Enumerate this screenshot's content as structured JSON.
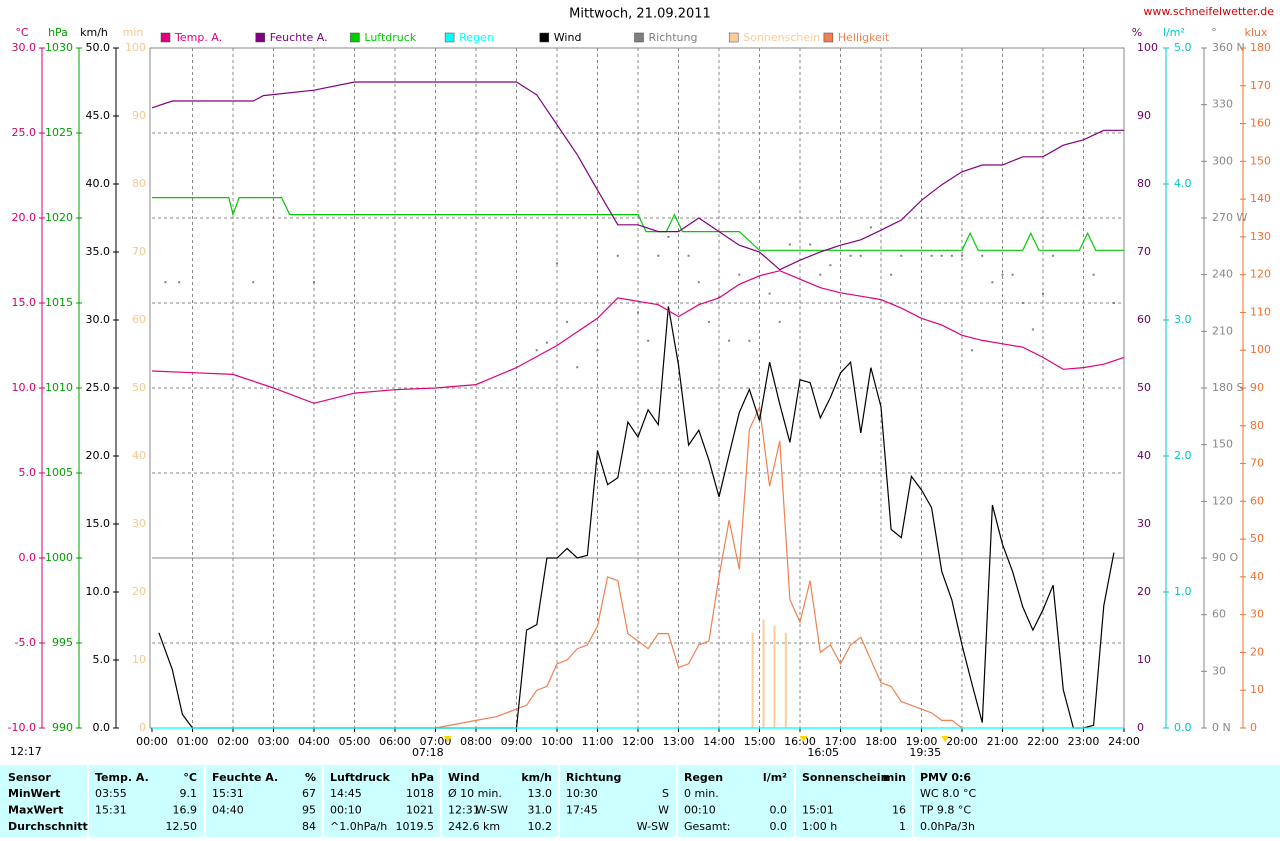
{
  "chart_data": {
    "type": "line",
    "title": "Mittwoch, 21.09.2011",
    "source": "www.schneifelwetter.de",
    "grid": true,
    "xlim": [
      0,
      24
    ],
    "xticks": [
      {
        "value": 0,
        "label": "00:00"
      },
      {
        "value": 1,
        "label": "01:00"
      },
      {
        "value": 2,
        "label": "02:00"
      },
      {
        "value": 3,
        "label": "03:00"
      },
      {
        "value": 4,
        "label": "04:00"
      },
      {
        "value": 5,
        "label": "05:00"
      },
      {
        "value": 6,
        "label": "06:00"
      },
      {
        "value": 7,
        "label": "07:00"
      },
      {
        "value": 8,
        "label": "08:00"
      },
      {
        "value": 9,
        "label": "09:00"
      },
      {
        "value": 10,
        "label": "10:00"
      },
      {
        "value": 11,
        "label": "11:00"
      },
      {
        "value": 12,
        "label": "12:00"
      },
      {
        "value": 13,
        "label": "13:00"
      },
      {
        "value": 14,
        "label": "14:00"
      },
      {
        "value": 15,
        "label": "15:00"
      },
      {
        "value": 16,
        "label": "16:00"
      },
      {
        "value": 17,
        "label": "17:00"
      },
      {
        "value": 18,
        "label": "18:00"
      },
      {
        "value": 19,
        "label": "19:00"
      },
      {
        "value": 20,
        "label": "20:00"
      },
      {
        "value": 21,
        "label": "21:00"
      },
      {
        "value": 22,
        "label": "22:00"
      },
      {
        "value": 23,
        "label": "23:00"
      },
      {
        "value": 24,
        "label": "24:00"
      }
    ],
    "axes": [
      {
        "label": "°C",
        "color": "#d0006f",
        "ylim": [
          -10,
          30
        ],
        "yticks": [
          {
            "value": -10,
            "label": "-10.0"
          },
          {
            "value": -5,
            "label": "-5.0"
          },
          {
            "value": 0,
            "label": "0.0"
          },
          {
            "value": 5,
            "label": "5.0"
          },
          {
            "value": 10,
            "label": "10.0"
          },
          {
            "value": 15,
            "label": "15.0"
          },
          {
            "value": 20,
            "label": "20.0"
          },
          {
            "value": 25,
            "label": "25.0"
          },
          {
            "value": 30,
            "label": "30.0"
          }
        ]
      },
      {
        "label": "hPa",
        "color": "#00a000",
        "ylim": [
          990,
          1030
        ],
        "yticks": [
          990,
          995,
          1000,
          1005,
          1010,
          1015,
          1020,
          1025,
          1030
        ]
      },
      {
        "label": "km/h",
        "color": "#000000",
        "ylim": [
          0,
          50
        ],
        "yticks": [
          {
            "value": 0,
            "label": "0.0"
          },
          {
            "value": 5,
            "label": "5.0"
          },
          {
            "value": 10,
            "label": "10.0"
          },
          {
            "value": 15,
            "label": "15.0"
          },
          {
            "value": 20,
            "label": "20.0"
          },
          {
            "value": 25,
            "label": "25.0"
          },
          {
            "value": 30,
            "label": "30.0"
          },
          {
            "value": 35,
            "label": "35.0"
          },
          {
            "value": 40,
            "label": "40.0"
          },
          {
            "value": 45,
            "label": "45.0"
          },
          {
            "value": 50,
            "label": "50.0"
          }
        ]
      },
      {
        "label": "min",
        "color": "#f5c890",
        "ylim": [
          0,
          100
        ],
        "yticks": [
          0,
          10,
          20,
          30,
          40,
          50,
          60,
          70,
          80,
          90,
          100
        ]
      },
      {
        "label": "%",
        "color": "#660066",
        "ylim": [
          0,
          100
        ],
        "yticks": [
          0,
          10,
          20,
          30,
          40,
          50,
          60,
          70,
          80,
          90,
          100
        ]
      },
      {
        "label": "l/m²",
        "color": "#00c8c8",
        "ylim": [
          0,
          5
        ],
        "yticks": [
          {
            "value": 0,
            "label": "0.0"
          },
          {
            "value": 1,
            "label": "1.0"
          },
          {
            "value": 2,
            "label": "2.0"
          },
          {
            "value": 3,
            "label": "3.0"
          },
          {
            "value": 4,
            "label": "4.0"
          },
          {
            "value": 5,
            "label": "5.0"
          }
        ]
      },
      {
        "label": "°",
        "color": "#888888",
        "ylim": [
          0,
          360
        ],
        "yticks": [
          {
            "value": 0,
            "label": "0 N"
          },
          30,
          60,
          {
            "value": 90,
            "label": "90 O"
          },
          120,
          150,
          {
            "value": 180,
            "label": "180 S"
          },
          210,
          240,
          {
            "value": 270,
            "label": "270 W"
          },
          300,
          330,
          {
            "value": 360,
            "label": "360 N"
          }
        ]
      },
      {
        "label": "klux",
        "color": "#f07030",
        "ylim": [
          0,
          180
        ],
        "yticks": [
          0,
          10,
          20,
          30,
          40,
          50,
          60,
          70,
          80,
          90,
          100,
          110,
          120,
          130,
          140,
          150,
          160,
          170,
          180
        ]
      }
    ],
    "series": [
      {
        "name": "Temp. A.",
        "axis": "°C",
        "type": "line",
        "color": "#e0007a",
        "x": [
          0,
          1,
          2,
          3,
          4,
          5,
          6,
          7,
          8,
          9,
          10,
          11,
          11.5,
          12,
          12.5,
          13,
          13.5,
          14,
          14.5,
          15,
          15.5,
          16,
          16.5,
          17,
          17.5,
          18,
          18.5,
          19,
          19.5,
          20,
          20.5,
          21,
          21.5,
          22,
          22.5,
          23,
          23.5,
          24
        ],
        "values": [
          11.0,
          10.9,
          10.8,
          10.0,
          9.1,
          9.7,
          9.9,
          10.0,
          10.2,
          11.2,
          12.5,
          14.1,
          15.3,
          15.1,
          14.9,
          14.2,
          14.9,
          15.3,
          16.1,
          16.6,
          16.9,
          16.4,
          15.9,
          15.6,
          15.4,
          15.2,
          14.7,
          14.1,
          13.7,
          13.1,
          12.8,
          12.6,
          12.4,
          11.8,
          11.1,
          11.2,
          11.4,
          11.8
        ]
      },
      {
        "name": "Feuchte A.",
        "axis": "%",
        "type": "line",
        "color": "#800080",
        "x": [
          0,
          0.5,
          2.5,
          2.75,
          4,
          5,
          9,
          9.5,
          10,
          10.5,
          11,
          11.5,
          12,
          12.5,
          13,
          13.5,
          14,
          14.5,
          15,
          15.5,
          16,
          16.5,
          17,
          17.5,
          18,
          18.5,
          19,
          19.5,
          20,
          20.5,
          21,
          21.5,
          22,
          22.5,
          23,
          23.5,
          24
        ],
        "values": [
          91.2,
          92.2,
          92.2,
          93,
          93.8,
          95,
          95,
          93.1,
          88.7,
          84.3,
          79.1,
          74,
          74,
          73,
          73,
          75,
          73,
          71,
          70,
          67.4,
          68.8,
          70,
          71,
          71.8,
          73.2,
          74.7,
          77.6,
          79.9,
          81.8,
          82.8,
          82.8,
          84,
          84,
          85.7,
          86.5,
          87.9,
          87.9
        ]
      },
      {
        "name": "Luftdruck",
        "axis": "hPa",
        "type": "line",
        "color": "#00cc00",
        "x": [
          0,
          1.9,
          2,
          2.15,
          3.2,
          3.4,
          12,
          12.2,
          12.7,
          12.9,
          13.1,
          14.5,
          15,
          20,
          20.2,
          20.4,
          21.5,
          21.7,
          21.9,
          22.9,
          23.1,
          23.3,
          24
        ],
        "values": [
          1021.2,
          1021.2,
          1020.2,
          1021.2,
          1021.2,
          1020.2,
          1020.2,
          1019.2,
          1019.2,
          1020.2,
          1019.2,
          1019.2,
          1018.1,
          1018.1,
          1019.1,
          1018.1,
          1018.1,
          1019.1,
          1018.1,
          1018.1,
          1019.1,
          1018.1,
          1018.1
        ]
      },
      {
        "name": "Regen",
        "axis": "l/m²",
        "type": "line",
        "color": "#00ffff",
        "x": [
          0,
          24
        ],
        "values": [
          0,
          0
        ]
      },
      {
        "name": "Wind",
        "axis": "km/h",
        "type": "line",
        "color": "#000000",
        "x": [
          0.17,
          0.5,
          0.75,
          1,
          9,
          9.25,
          9.5,
          9.75,
          10,
          10.25,
          10.5,
          10.75,
          11,
          11.25,
          11.5,
          11.75,
          12,
          12.25,
          12.5,
          12.75,
          13,
          13.25,
          13.5,
          13.75,
          14,
          14.25,
          14.5,
          14.75,
          15,
          15.25,
          15.5,
          15.75,
          16,
          16.25,
          16.5,
          16.75,
          17,
          17.25,
          17.5,
          17.75,
          18,
          18.25,
          18.5,
          18.75,
          19,
          19.25,
          19.5,
          19.75,
          20,
          20.25,
          20.5,
          20.75,
          21,
          21.25,
          21.5,
          21.75,
          22,
          22.25,
          22.5,
          22.75,
          23,
          23.25,
          23.5,
          23.75
        ],
        "values": [
          7.0,
          4.3,
          1.0,
          0,
          0,
          7.2,
          7.6,
          12.5,
          12.5,
          13.2,
          12.5,
          12.7,
          20.4,
          17.9,
          18.4,
          22.5,
          21.4,
          23.4,
          22.3,
          31.0,
          26.7,
          20.8,
          21.9,
          19.7,
          17.0,
          20.1,
          23.2,
          24.9,
          22.6,
          26.9,
          23.8,
          21.0,
          25.6,
          25.4,
          22.8,
          24.3,
          26.1,
          26.9,
          21.7,
          26.5,
          23.6,
          14.6,
          14.0,
          18.5,
          17.5,
          16.2,
          11.5,
          9.4,
          6.1,
          3.2,
          0.4,
          16.4,
          13.5,
          11.5,
          8.9,
          7.2,
          8.7,
          10.5,
          2.8,
          0,
          0,
          0.2,
          9.0,
          12.9
        ]
      },
      {
        "name": "Richtung",
        "axis": "°",
        "type": "scatter",
        "color": "#808080",
        "x": [
          0.33,
          0.67,
          2.5,
          4,
          9.5,
          9.75,
          10,
          10.25,
          10.5,
          11,
          11.5,
          12,
          12.25,
          12.5,
          12.75,
          13.25,
          13.5,
          13.75,
          14,
          14.25,
          14.5,
          14.75,
          15.25,
          15.5,
          15.75,
          16.25,
          16.5,
          16.75,
          17.25,
          17.5,
          17.75,
          18.25,
          18.5,
          19.25,
          19.5,
          19.75,
          20,
          20.25,
          20.5,
          20.75,
          21,
          21.25,
          21.5,
          21.75,
          22,
          22.25,
          23.25,
          23.75
        ],
        "values": [
          236,
          236,
          236,
          236,
          200,
          204,
          246,
          215,
          191,
          200,
          250,
          220,
          205,
          250,
          260,
          250,
          236,
          215,
          228,
          205,
          240,
          205,
          230,
          215,
          256,
          256,
          240,
          245,
          250,
          250,
          265,
          240,
          250,
          250,
          250,
          250,
          250,
          200,
          250,
          236,
          240,
          240,
          225,
          211,
          230,
          250,
          240,
          225
        ]
      },
      {
        "name": "Sonnenschein",
        "axis": "min",
        "type": "bar",
        "color": "#ffcc99",
        "x": [
          14.83,
          15.1,
          15.37,
          15.65
        ],
        "values": [
          14,
          16,
          15,
          14
        ]
      },
      {
        "name": "Helligkeit",
        "axis": "klux",
        "type": "line",
        "color": "#f08050",
        "x": [
          7,
          8,
          8.5,
          9,
          9.25,
          9.5,
          9.75,
          10,
          10.25,
          10.5,
          10.75,
          11,
          11.25,
          11.5,
          11.75,
          12,
          12.25,
          12.5,
          12.75,
          13,
          13.25,
          13.5,
          13.75,
          14,
          14.25,
          14.5,
          14.75,
          15,
          15.25,
          15.5,
          15.75,
          16,
          16.25,
          16.5,
          16.75,
          17,
          17.25,
          17.5,
          17.75,
          18,
          18.25,
          18.5,
          18.75,
          19,
          19.25,
          19.5,
          19.75,
          20
        ],
        "values": [
          0,
          2,
          3,
          5,
          6,
          10,
          11,
          17,
          18,
          21,
          22,
          27,
          40,
          39,
          25,
          23,
          21,
          25,
          25,
          16,
          17,
          22,
          23,
          40,
          55,
          42,
          79,
          85,
          64,
          76,
          34,
          28,
          39,
          20,
          22,
          17,
          22,
          24,
          18,
          12,
          11,
          7,
          6,
          5,
          4,
          2,
          2,
          0
        ]
      }
    ],
    "annotations": [
      {
        "x": 7.3,
        "label": "07:18"
      },
      {
        "x": 19.583,
        "label": "19:35"
      },
      {
        "x": 16.083,
        "label": "16:05"
      }
    ],
    "moonrise": "12:17"
  },
  "table": {
    "header": [
      [
        "Sensor"
      ],
      [
        "Temp. A.",
        "°C"
      ],
      [
        "Feuchte A.",
        "%"
      ],
      [
        "Luftdruck",
        "hPa"
      ],
      [
        "Wind",
        "km/h"
      ],
      [
        "Richtung"
      ],
      [
        "Regen",
        "l/m²"
      ],
      [
        "Sonnenschein",
        "min"
      ],
      [
        "PMV 0:6"
      ]
    ],
    "rows": [
      [
        [
          "MinWert"
        ],
        [
          "03:55",
          "9.1"
        ],
        [
          "15:31",
          "67"
        ],
        [
          "14:45",
          "1018"
        ],
        [
          "Ø 10 min.",
          "13.0"
        ],
        [
          "10:30",
          "S"
        ],
        [
          "0 min."
        ],
        [],
        [
          "WC 8.0 °C"
        ]
      ],
      [
        [
          "MaxWert"
        ],
        [
          "15:31",
          "16.9"
        ],
        [
          "04:40",
          "95"
        ],
        [
          "00:10",
          "1021"
        ],
        [
          "12:31",
          "W-SW",
          "31.0"
        ],
        [
          "17:45",
          "W"
        ],
        [
          "00:10",
          "0.0"
        ],
        [
          "15:01",
          "16"
        ],
        [
          "TP 9.8 °C"
        ]
      ],
      [
        [
          "Durchschnitt"
        ],
        [
          null,
          "12.50"
        ],
        [
          null,
          "84"
        ],
        [
          "^1.0hPa/h",
          "1019.5"
        ],
        [
          "242.6 km",
          "10.2"
        ],
        [
          null,
          "W-SW"
        ],
        [
          "Gesamt:",
          "0.0"
        ],
        [
          "1:00 h",
          "1"
        ],
        [
          "0.0hPa/3h"
        ]
      ]
    ]
  }
}
